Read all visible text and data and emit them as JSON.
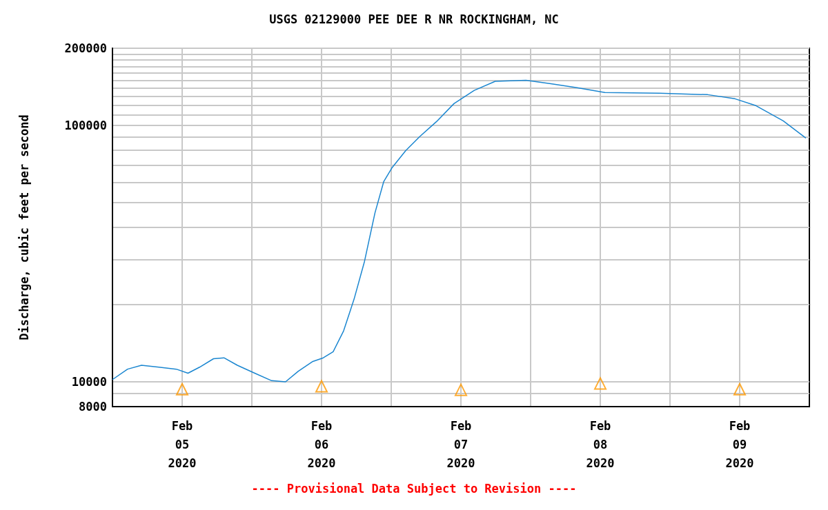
{
  "chart_data": {
    "type": "line",
    "title": "USGS 02129000 PEE DEE R NR ROCKINGHAM, NC",
    "ylabel": "Discharge, cubic feet per second",
    "annotations": [
      "---- Provisional Data Subject to Revision ----"
    ],
    "log": "y",
    "grid": true,
    "xlim": [
      "2020-02-05",
      "2020-02-10"
    ],
    "xticks": [
      {
        "value": "2020-02-05T12:00",
        "label": "Feb\n05\n2020"
      },
      {
        "value": "2020-02-06",
        "label": null
      },
      {
        "value": "2020-02-06T12:00",
        "label": "Feb\n06\n2020"
      },
      {
        "value": "2020-02-07",
        "label": null
      },
      {
        "value": "2020-02-07T12:00",
        "label": "Feb\n07\n2020"
      },
      {
        "value": "2020-02-08",
        "label": null
      },
      {
        "value": "2020-02-08T12:00",
        "label": "Feb\n08\n2020"
      },
      {
        "value": "2020-02-09",
        "label": null
      },
      {
        "value": "2020-02-09T12:00",
        "label": "Feb\n09\n2020"
      }
    ],
    "ylim": [
      8000,
      200000
    ],
    "yticks": [
      8000,
      {
        "value": 9000,
        "label": null
      },
      10000,
      {
        "value": 20000,
        "label": null
      },
      {
        "value": 30000,
        "label": null
      },
      {
        "value": 40000,
        "label": null
      },
      {
        "value": 50000,
        "label": null
      },
      {
        "value": 60000,
        "label": null
      },
      {
        "value": 70000,
        "label": null
      },
      {
        "value": 80000,
        "label": null
      },
      {
        "value": 90000,
        "label": null
      },
      100000,
      {
        "value": 110000,
        "label": null
      },
      {
        "value": 120000,
        "label": null
      },
      {
        "value": 130000,
        "label": null
      },
      {
        "value": 140000,
        "label": null
      },
      {
        "value": 150000,
        "label": null
      },
      {
        "value": 160000,
        "label": null
      },
      {
        "value": 170000,
        "label": null
      },
      {
        "value": 180000,
        "label": null
      },
      {
        "value": 190000,
        "label": null
      },
      200000
    ],
    "series": [
      {
        "color": "#1a86d0",
        "marker": "none",
        "line_style": "solid",
        "x": [
          "2020-02-05T00:00",
          "2020-02-05T02:36",
          "2020-02-05T05:00",
          "2020-02-05T08:00",
          "2020-02-05T11:00",
          "2020-02-05T13:00",
          "2020-02-05T15:00",
          "2020-02-05T17:24",
          "2020-02-05T19:12",
          "2020-02-05T21:30",
          "2020-02-06T00:30",
          "2020-02-06T03:24",
          "2020-02-06T05:48",
          "2020-02-06T08:00",
          "2020-02-06T10:30",
          "2020-02-06T12:18",
          "2020-02-06T14:00",
          "2020-02-06T15:48",
          "2020-02-06T17:36",
          "2020-02-06T19:24",
          "2020-02-06T21:12",
          "2020-02-06T22:42",
          "2020-02-07T00:06",
          "2020-02-07T02:30",
          "2020-02-07T04:54",
          "2020-02-07T07:48",
          "2020-02-07T10:48",
          "2020-02-07T14:18",
          "2020-02-07T17:54",
          "2020-02-07T23:12",
          "2020-02-08T03:18",
          "2020-02-08T08:00",
          "2020-02-08T12:48",
          "2020-02-08T22:12",
          "2020-02-09T06:30",
          "2020-02-09T11:12",
          "2020-02-09T14:48",
          "2020-02-09T19:30",
          "2020-02-09T23:24"
        ],
        "values": [
          10200,
          11200,
          11600,
          11400,
          11200,
          10800,
          11400,
          12300,
          12400,
          11600,
          10800,
          10100,
          10000,
          11000,
          12000,
          12400,
          13100,
          15800,
          21000,
          29500,
          45600,
          60300,
          68200,
          79800,
          90400,
          103500,
          121600,
          137000,
          148600,
          150000,
          145600,
          140300,
          134300,
          133500,
          131800,
          127000,
          119400,
          104200,
          89200
        ]
      },
      {
        "type": "scatter",
        "color": "#ff9900",
        "marker": "triangle",
        "x": [
          "2020-02-05T12:00",
          "2020-02-06T12:00",
          "2020-02-07T12:00",
          "2020-02-08T12:00",
          "2020-02-09T12:00"
        ],
        "values": [
          9350,
          9600,
          9300,
          9850,
          9350
        ]
      }
    ]
  }
}
